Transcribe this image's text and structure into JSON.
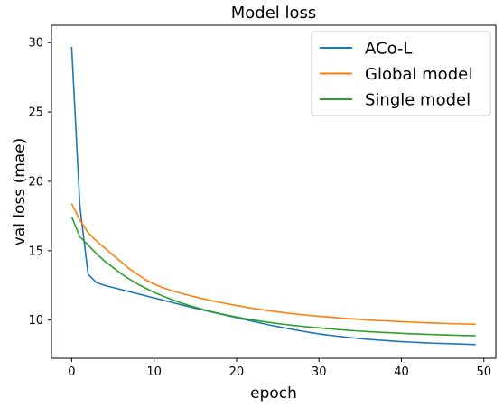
{
  "chart_data": {
    "type": "line",
    "title": "Model loss",
    "xlabel": "epoch",
    "ylabel": "val loss (mae)",
    "xlim": [
      -2.45,
      51.45
    ],
    "ylim": [
      7.25,
      31.25
    ],
    "xticks": [
      0,
      10,
      20,
      30,
      40,
      50
    ],
    "yticks": [
      10,
      15,
      20,
      25,
      30
    ],
    "grid": false,
    "legend_position": "top-right",
    "x": [
      0,
      1,
      2,
      3,
      4,
      5,
      6,
      7,
      8,
      9,
      10,
      11,
      12,
      13,
      14,
      15,
      16,
      17,
      18,
      19,
      20,
      21,
      22,
      23,
      24,
      25,
      26,
      27,
      28,
      29,
      30,
      31,
      32,
      33,
      34,
      35,
      36,
      37,
      38,
      39,
      40,
      41,
      42,
      43,
      44,
      45,
      46,
      47,
      48,
      49
    ],
    "series": [
      {
        "name": "ACo-L",
        "color": "#1f77b4",
        "values": [
          29.7,
          18.2,
          13.3,
          12.7,
          12.5,
          12.35,
          12.2,
          12.05,
          11.9,
          11.75,
          11.6,
          11.45,
          11.3,
          11.15,
          11.0,
          10.85,
          10.72,
          10.58,
          10.45,
          10.31,
          10.18,
          10.04,
          9.91,
          9.78,
          9.65,
          9.53,
          9.42,
          9.31,
          9.2,
          9.1,
          9.01,
          8.93,
          8.86,
          8.79,
          8.73,
          8.67,
          8.62,
          8.57,
          8.53,
          8.49,
          8.45,
          8.42,
          8.39,
          8.36,
          8.34,
          8.32,
          8.3,
          8.28,
          8.26,
          8.24
        ]
      },
      {
        "name": "Global model",
        "color": "#ff7f0e",
        "values": [
          18.4,
          17.2,
          16.3,
          15.7,
          15.2,
          14.7,
          14.2,
          13.7,
          13.3,
          12.9,
          12.6,
          12.35,
          12.15,
          11.98,
          11.82,
          11.67,
          11.53,
          11.4,
          11.28,
          11.16,
          11.05,
          10.95,
          10.85,
          10.76,
          10.67,
          10.59,
          10.52,
          10.45,
          10.39,
          10.33,
          10.28,
          10.23,
          10.18,
          10.13,
          10.09,
          10.05,
          10.01,
          9.98,
          9.95,
          9.92,
          9.89,
          9.86,
          9.83,
          9.81,
          9.79,
          9.77,
          9.75,
          9.73,
          9.72,
          9.7
        ]
      },
      {
        "name": "Single model",
        "color": "#2ca02c",
        "values": [
          17.45,
          16.0,
          15.4,
          14.8,
          14.25,
          13.8,
          13.35,
          12.95,
          12.6,
          12.3,
          12.0,
          11.75,
          11.52,
          11.3,
          11.1,
          10.92,
          10.76,
          10.61,
          10.47,
          10.34,
          10.22,
          10.11,
          10.01,
          9.92,
          9.83,
          9.75,
          9.68,
          9.61,
          9.55,
          9.49,
          9.44,
          9.39,
          9.34,
          9.29,
          9.25,
          9.21,
          9.17,
          9.14,
          9.11,
          9.08,
          9.05,
          9.02,
          9.0,
          8.98,
          8.96,
          8.94,
          8.92,
          8.9,
          8.89,
          8.88
        ]
      }
    ]
  }
}
